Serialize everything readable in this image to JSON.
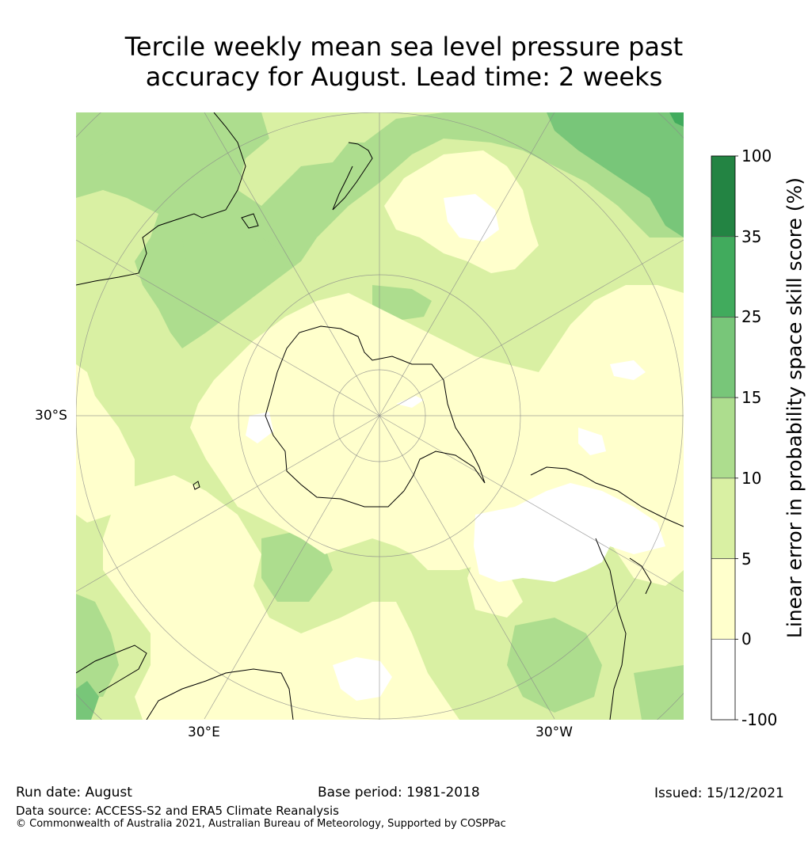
{
  "title": {
    "line1": "Tercile weekly mean sea level pressure past",
    "line2": "accuracy for August. Lead time: 2 weeks"
  },
  "map": {
    "projection": "south-polar stereographic",
    "labels": {
      "lat_left": "30°S",
      "lon_bottom_left": "30°E",
      "lon_bottom_right": "30°W"
    }
  },
  "colorbar": {
    "label": "Linear error in probability space skill score (%)",
    "bins": [
      {
        "range": "-100 to 0",
        "color": "#ffffff"
      },
      {
        "range": "0 to 5",
        "color": "#ffffcc"
      },
      {
        "range": "5 to 10",
        "color": "#d9f0a3"
      },
      {
        "range": "10 to 15",
        "color": "#addd8e"
      },
      {
        "range": "15 to 25",
        "color": "#78c679"
      },
      {
        "range": "25 to 35",
        "color": "#41ab5d"
      },
      {
        "range": "35 to 100",
        "color": "#238443"
      }
    ],
    "ticks": [
      "100",
      "35",
      "25",
      "15",
      "10",
      "5",
      "0",
      "-100"
    ]
  },
  "footer": {
    "run_date": "Run date: August",
    "base_period": "Base period: 1981-2018",
    "issued": "Issued: 15/12/2021",
    "data_source": "Data source: ACCESS-S2 and ERA5 Climate Reanalysis",
    "copyright": "© Commonwealth of Australia 2021, Australian Bureau of Meteorology, Supported by COSPPac"
  }
}
